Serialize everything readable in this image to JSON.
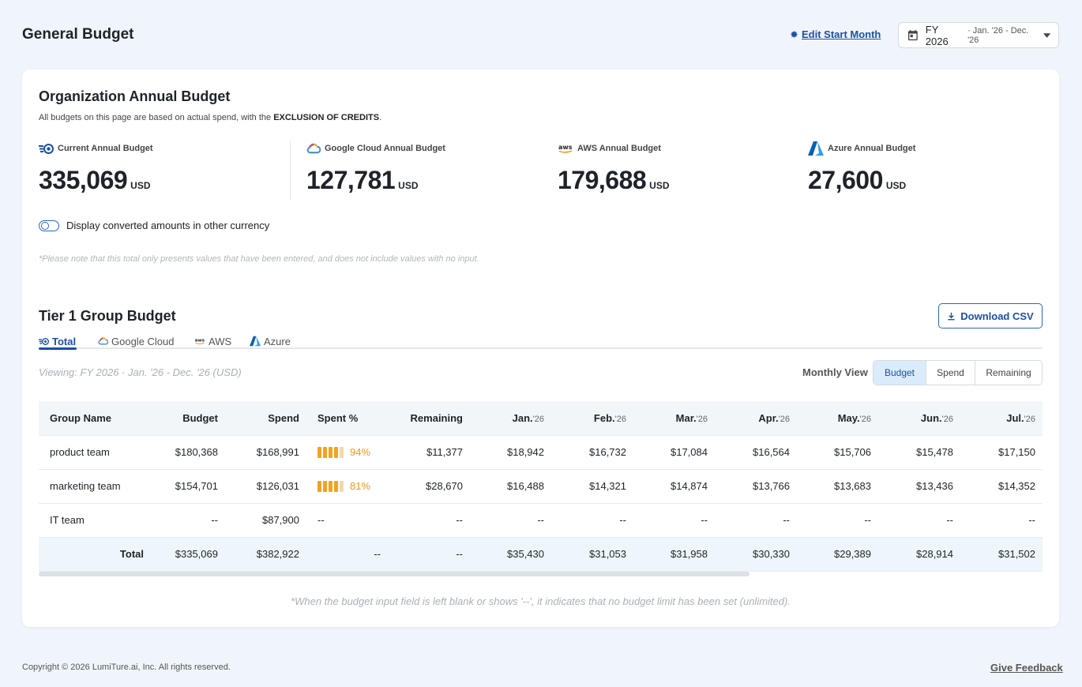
{
  "header": {
    "title": "General Budget",
    "edit_start_label": "Edit Start Month",
    "fy_select": {
      "main": "FY 2026",
      "sub": "· Jan. '26 - Dec. '26"
    }
  },
  "org": {
    "title": "Organization Annual Budget",
    "desc_prefix": "All budgets on this page are based on actual spend, with the ",
    "desc_bold": "EXCLUSION OF CREDITS",
    "desc_suffix": ".",
    "kpis": [
      {
        "label": "Current Annual Budget",
        "value": "335,069",
        "unit": "USD",
        "icon": "lumiture-logo-icon"
      },
      {
        "label": "Google Cloud Annual Budget",
        "value": "127,781",
        "unit": "USD",
        "icon": "google-cloud-icon"
      },
      {
        "label": "AWS Annual Budget",
        "value": "179,688",
        "unit": "USD",
        "icon": "aws-icon"
      },
      {
        "label": "Azure Annual Budget",
        "value": "27,600",
        "unit": "USD",
        "icon": "azure-icon"
      }
    ],
    "toggle_label": "Display converted amounts in other currency",
    "note": "*Please note that this total only presents values that have been entered, and does not include values with no input."
  },
  "tier": {
    "title": "Tier 1 Group Budget",
    "download_label": "Download CSV",
    "tabs": [
      "Total",
      "Google Cloud",
      "AWS",
      "Azure"
    ],
    "viewing": "Viewing: FY 2026 · Jan. '26 - Dec. '26 (USD)",
    "monthly_view_label": "Monthly View",
    "segments": [
      "Budget",
      "Spend",
      "Remaining"
    ],
    "columns": {
      "group": "Group Name",
      "budget": "Budget",
      "spend": "Spend",
      "spent_pct": "Spent %",
      "remaining": "Remaining",
      "months": [
        {
          "m": "Jan.",
          "y": "'26"
        },
        {
          "m": "Feb.",
          "y": "'26"
        },
        {
          "m": "Mar.",
          "y": "'26"
        },
        {
          "m": "Apr.",
          "y": "'26"
        },
        {
          "m": "May.",
          "y": "'26"
        },
        {
          "m": "Jun.",
          "y": "'26"
        },
        {
          "m": "Jul.",
          "y": "'26"
        }
      ]
    },
    "rows": [
      {
        "name": "product team",
        "budget": "$180,368",
        "spend": "$168,991",
        "pct": "94%",
        "pct_value": 0.94,
        "remaining": "$11,377",
        "months": [
          "$18,942",
          "$16,732",
          "$17,084",
          "$16,564",
          "$15,706",
          "$15,478",
          "$17,150"
        ]
      },
      {
        "name": "marketing team",
        "budget": "$154,701",
        "spend": "$126,031",
        "pct": "81%",
        "pct_value": 0.81,
        "remaining": "$28,670",
        "months": [
          "$16,488",
          "$14,321",
          "$14,874",
          "$13,766",
          "$13,683",
          "$13,436",
          "$14,352"
        ]
      },
      {
        "name": "IT team",
        "budget": "--",
        "spend": "$87,900",
        "pct": "--",
        "pct_value": null,
        "remaining": "--",
        "months": [
          "--",
          "--",
          "--",
          "--",
          "--",
          "--",
          "--"
        ]
      }
    ],
    "total": {
      "label": "Total",
      "budget": "$335,069",
      "spend": "$382,922",
      "pct": "--",
      "remaining": "--",
      "months": [
        "$35,430",
        "$31,053",
        "$31,958",
        "$30,330",
        "$29,389",
        "$28,914",
        "$31,502"
      ]
    },
    "bottom_note": "*When the budget input field is left blank or shows '--', it indicates that no budget limit has been set (unlimited)."
  },
  "footer": {
    "copyright": "Copyright © 2026 LumiTure.ai, Inc. All rights reserved.",
    "feedback": "Give Feedback"
  },
  "colors": {
    "accent": "#1b4fa8",
    "bar": "#f4a21d",
    "pct_text": "#f0961a"
  }
}
